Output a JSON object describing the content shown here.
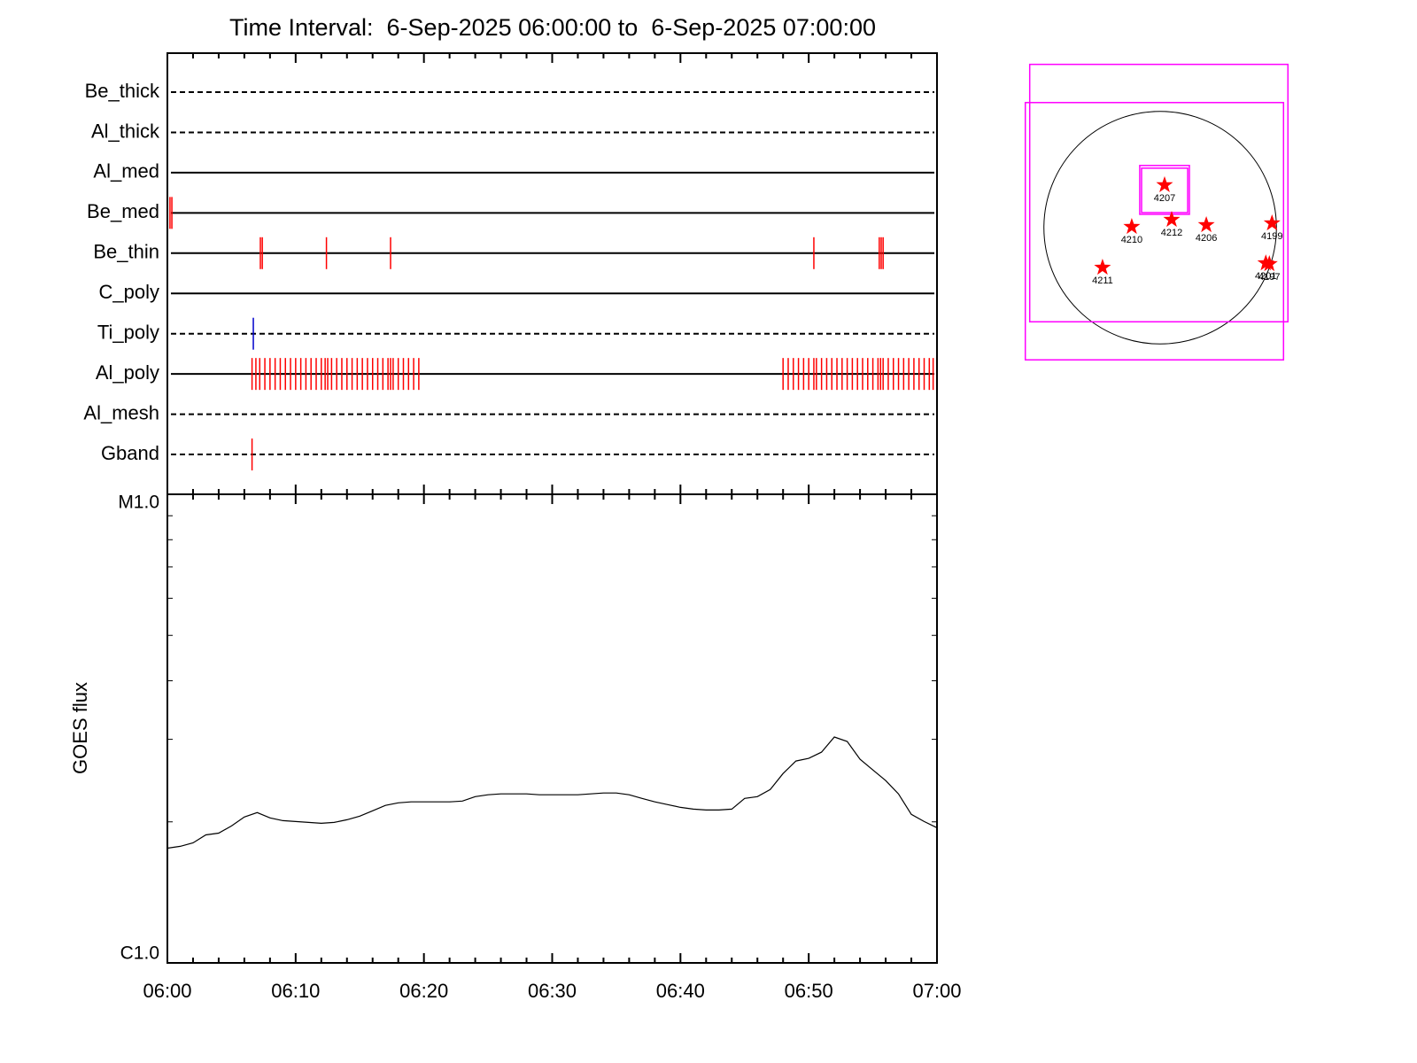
{
  "chart_data": [
    {
      "type": "timeline",
      "title": "Time Interval:  6-Sep-2025 06:00:00 to  6-Sep-2025 07:00:00",
      "xlim": [
        0,
        60
      ],
      "rows": [
        {
          "name": "Be_thick",
          "style": "dashed",
          "color": "#ff0000",
          "events": []
        },
        {
          "name": "Al_thick",
          "style": "dashed",
          "color": "#ff0000",
          "events": []
        },
        {
          "name": "Al_med",
          "style": "solid",
          "color": "#ff0000",
          "events": []
        },
        {
          "name": "Be_med",
          "style": "solid",
          "color": "#ff0000",
          "events": [
            0.2,
            0.35
          ]
        },
        {
          "name": "Be_thin",
          "style": "solid",
          "color": "#ff0000",
          "events": [
            7.25,
            7.4,
            12.4,
            17.4,
            50.4,
            55.5,
            55.65,
            55.8
          ]
        },
        {
          "name": "C_poly",
          "style": "solid",
          "color": "#ff0000",
          "events": []
        },
        {
          "name": "Ti_poly",
          "style": "dashed",
          "color": "#0000cc",
          "events": [
            6.7
          ]
        },
        {
          "name": "Al_poly",
          "style": "solid",
          "color": "#ff0000",
          "events": [
            6.6,
            6.9,
            7.2,
            7.6,
            8.0,
            8.4,
            8.8,
            9.2,
            9.6,
            10.0,
            10.4,
            10.8,
            11.2,
            11.6,
            12.0,
            12.3,
            12.5,
            12.8,
            13.2,
            13.6,
            14.0,
            14.4,
            14.8,
            15.2,
            15.6,
            16.0,
            16.4,
            16.8,
            17.2,
            17.4,
            17.6,
            18.0,
            18.4,
            18.8,
            19.2,
            19.6,
            48.0,
            48.4,
            48.8,
            49.2,
            49.6,
            50.0,
            50.4,
            50.6,
            51.0,
            51.4,
            51.8,
            52.2,
            52.6,
            53.0,
            53.4,
            53.8,
            54.2,
            54.6,
            55.0,
            55.4,
            55.6,
            55.8,
            56.2,
            56.6,
            57.0,
            57.4,
            57.8,
            58.2,
            58.6,
            59.0,
            59.4,
            59.7
          ]
        },
        {
          "name": "Al_mesh",
          "style": "dashed",
          "color": "#ff0000",
          "events": []
        },
        {
          "name": "Gband",
          "style": "dashed",
          "color": "#ff0000",
          "events": [
            6.6
          ]
        }
      ]
    },
    {
      "type": "line",
      "y_label": "GOES flux",
      "log_y": true,
      "color": "#000000",
      "x": [
        0,
        1,
        2,
        3,
        4,
        5,
        6,
        7,
        8,
        9,
        10,
        11,
        12,
        13,
        14,
        15,
        16,
        17,
        18,
        19,
        20,
        21,
        22,
        23,
        24,
        25,
        26,
        27,
        28,
        29,
        30,
        31,
        32,
        33,
        34,
        35,
        36,
        37,
        38,
        39,
        40,
        41,
        42,
        43,
        44,
        45,
        46,
        47,
        48,
        49,
        50,
        51,
        52,
        53,
        54,
        55,
        56,
        57,
        58,
        59,
        60
      ],
      "values": [
        1.757e-06,
        1.773e-06,
        1.804e-06,
        1.876e-06,
        1.892e-06,
        1.96e-06,
        2.048e-06,
        2.093e-06,
        2.039e-06,
        2.012e-06,
        2.003e-06,
        1.994e-06,
        1.986e-06,
        1.994e-06,
        2.021e-06,
        2.057e-06,
        2.111e-06,
        2.168e-06,
        2.196e-06,
        2.206e-06,
        2.206e-06,
        2.206e-06,
        2.206e-06,
        2.215e-06,
        2.264e-06,
        2.284e-06,
        2.294e-06,
        2.294e-06,
        2.294e-06,
        2.284e-06,
        2.284e-06,
        2.284e-06,
        2.284e-06,
        2.294e-06,
        2.304e-06,
        2.304e-06,
        2.284e-06,
        2.244e-06,
        2.206e-06,
        2.177e-06,
        2.148e-06,
        2.129e-06,
        2.12e-06,
        2.12e-06,
        2.129e-06,
        2.244e-06,
        2.264e-06,
        2.344e-06,
        2.536e-06,
        2.696e-06,
        2.732e-06,
        2.817e-06,
        3.034e-06,
        2.969e-06,
        2.72e-06,
        2.581e-06,
        2.449e-06,
        2.294e-06,
        2.075e-06,
        2.003e-06,
        1.943e-06
      ],
      "xlim": [
        0,
        60
      ],
      "xticks": [
        {
          "value": 0,
          "label": "06:00"
        },
        {
          "value": 10,
          "label": "06:10"
        },
        {
          "value": 20,
          "label": "06:20"
        },
        {
          "value": 30,
          "label": "06:30"
        },
        {
          "value": 40,
          "label": "06:40"
        },
        {
          "value": 50,
          "label": "06:50"
        },
        {
          "value": 60,
          "label": "07:00"
        }
      ],
      "xminor": [
        2,
        4,
        6,
        8,
        12,
        14,
        16,
        18,
        22,
        24,
        26,
        28,
        32,
        34,
        36,
        38,
        42,
        44,
        46,
        48,
        52,
        54,
        56,
        58
      ],
      "ylim": [
        1e-06,
        1e-05
      ],
      "yticks": [
        {
          "value": 1e-06,
          "label": "C1.0"
        },
        {
          "value": 1e-05,
          "label": "M1.0"
        }
      ],
      "yminor": [
        2e-06,
        3e-06,
        4e-06,
        5e-06,
        6e-06,
        7e-06,
        8e-06,
        9e-06
      ]
    },
    {
      "type": "map",
      "xlim": [
        -1100,
        1100
      ],
      "ylim": [
        -1100,
        1100
      ],
      "disk_radius": 950,
      "box_color": "#ff00ff",
      "point_color": "#ff0000",
      "boxes": [
        {
          "x": [
            -1066,
            1044
          ],
          "y": [
            -769,
            1334
          ]
        },
        {
          "x": [
            -1102,
            1008
          ],
          "y": [
            -1080,
            1022
          ]
        },
        {
          "x": [
            -167,
            239
          ],
          "y": [
            109,
            508
          ]
        },
        {
          "x": [
            -152,
            225
          ],
          "y": [
            123,
            486
          ]
        }
      ],
      "points": [
        {
          "label": "4207",
          "x": 36,
          "y": 348
        },
        {
          "label": "4210",
          "x": -232,
          "y": 7
        },
        {
          "label": "4212",
          "x": 94,
          "y": 65
        },
        {
          "label": "4206",
          "x": 377,
          "y": 22
        },
        {
          "label": "4199",
          "x": 914,
          "y": 36
        },
        {
          "label": "4211",
          "x": -471,
          "y": -326
        },
        {
          "label": "4197",
          "x": 892,
          "y": -297
        },
        {
          "label": "4201",
          "x": 863,
          "y": -290
        }
      ]
    }
  ]
}
